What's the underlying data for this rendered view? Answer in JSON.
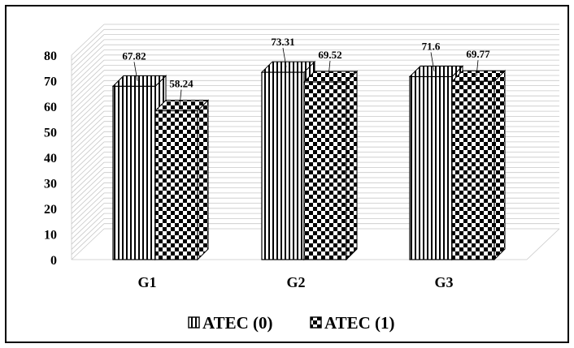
{
  "chart_data": {
    "type": "bar",
    "categories": [
      "G1",
      "G2",
      "G3"
    ],
    "series": [
      {
        "name": "ATEC (0)",
        "values": [
          67.82,
          73.31,
          71.6
        ]
      },
      {
        "name": "ATEC (1)",
        "values": [
          58.24,
          69.52,
          69.77
        ]
      }
    ],
    "data_labels": [
      [
        "67.82",
        "73.31",
        "71.6"
      ],
      [
        "58.24",
        "69.52",
        "69.77"
      ]
    ],
    "ylim": [
      0,
      80
    ],
    "yticks": [
      0,
      10,
      20,
      30,
      40,
      50,
      60,
      70,
      80
    ],
    "title": "",
    "xlabel": "",
    "ylabel": "",
    "grid": true,
    "three_d": true,
    "legend": "bottom-center",
    "patterns": [
      "vertical-stripes",
      "checkered"
    ],
    "colors": {
      "ink": "#000000",
      "background": "#ffffff",
      "grid": "#c8c8c8"
    }
  }
}
